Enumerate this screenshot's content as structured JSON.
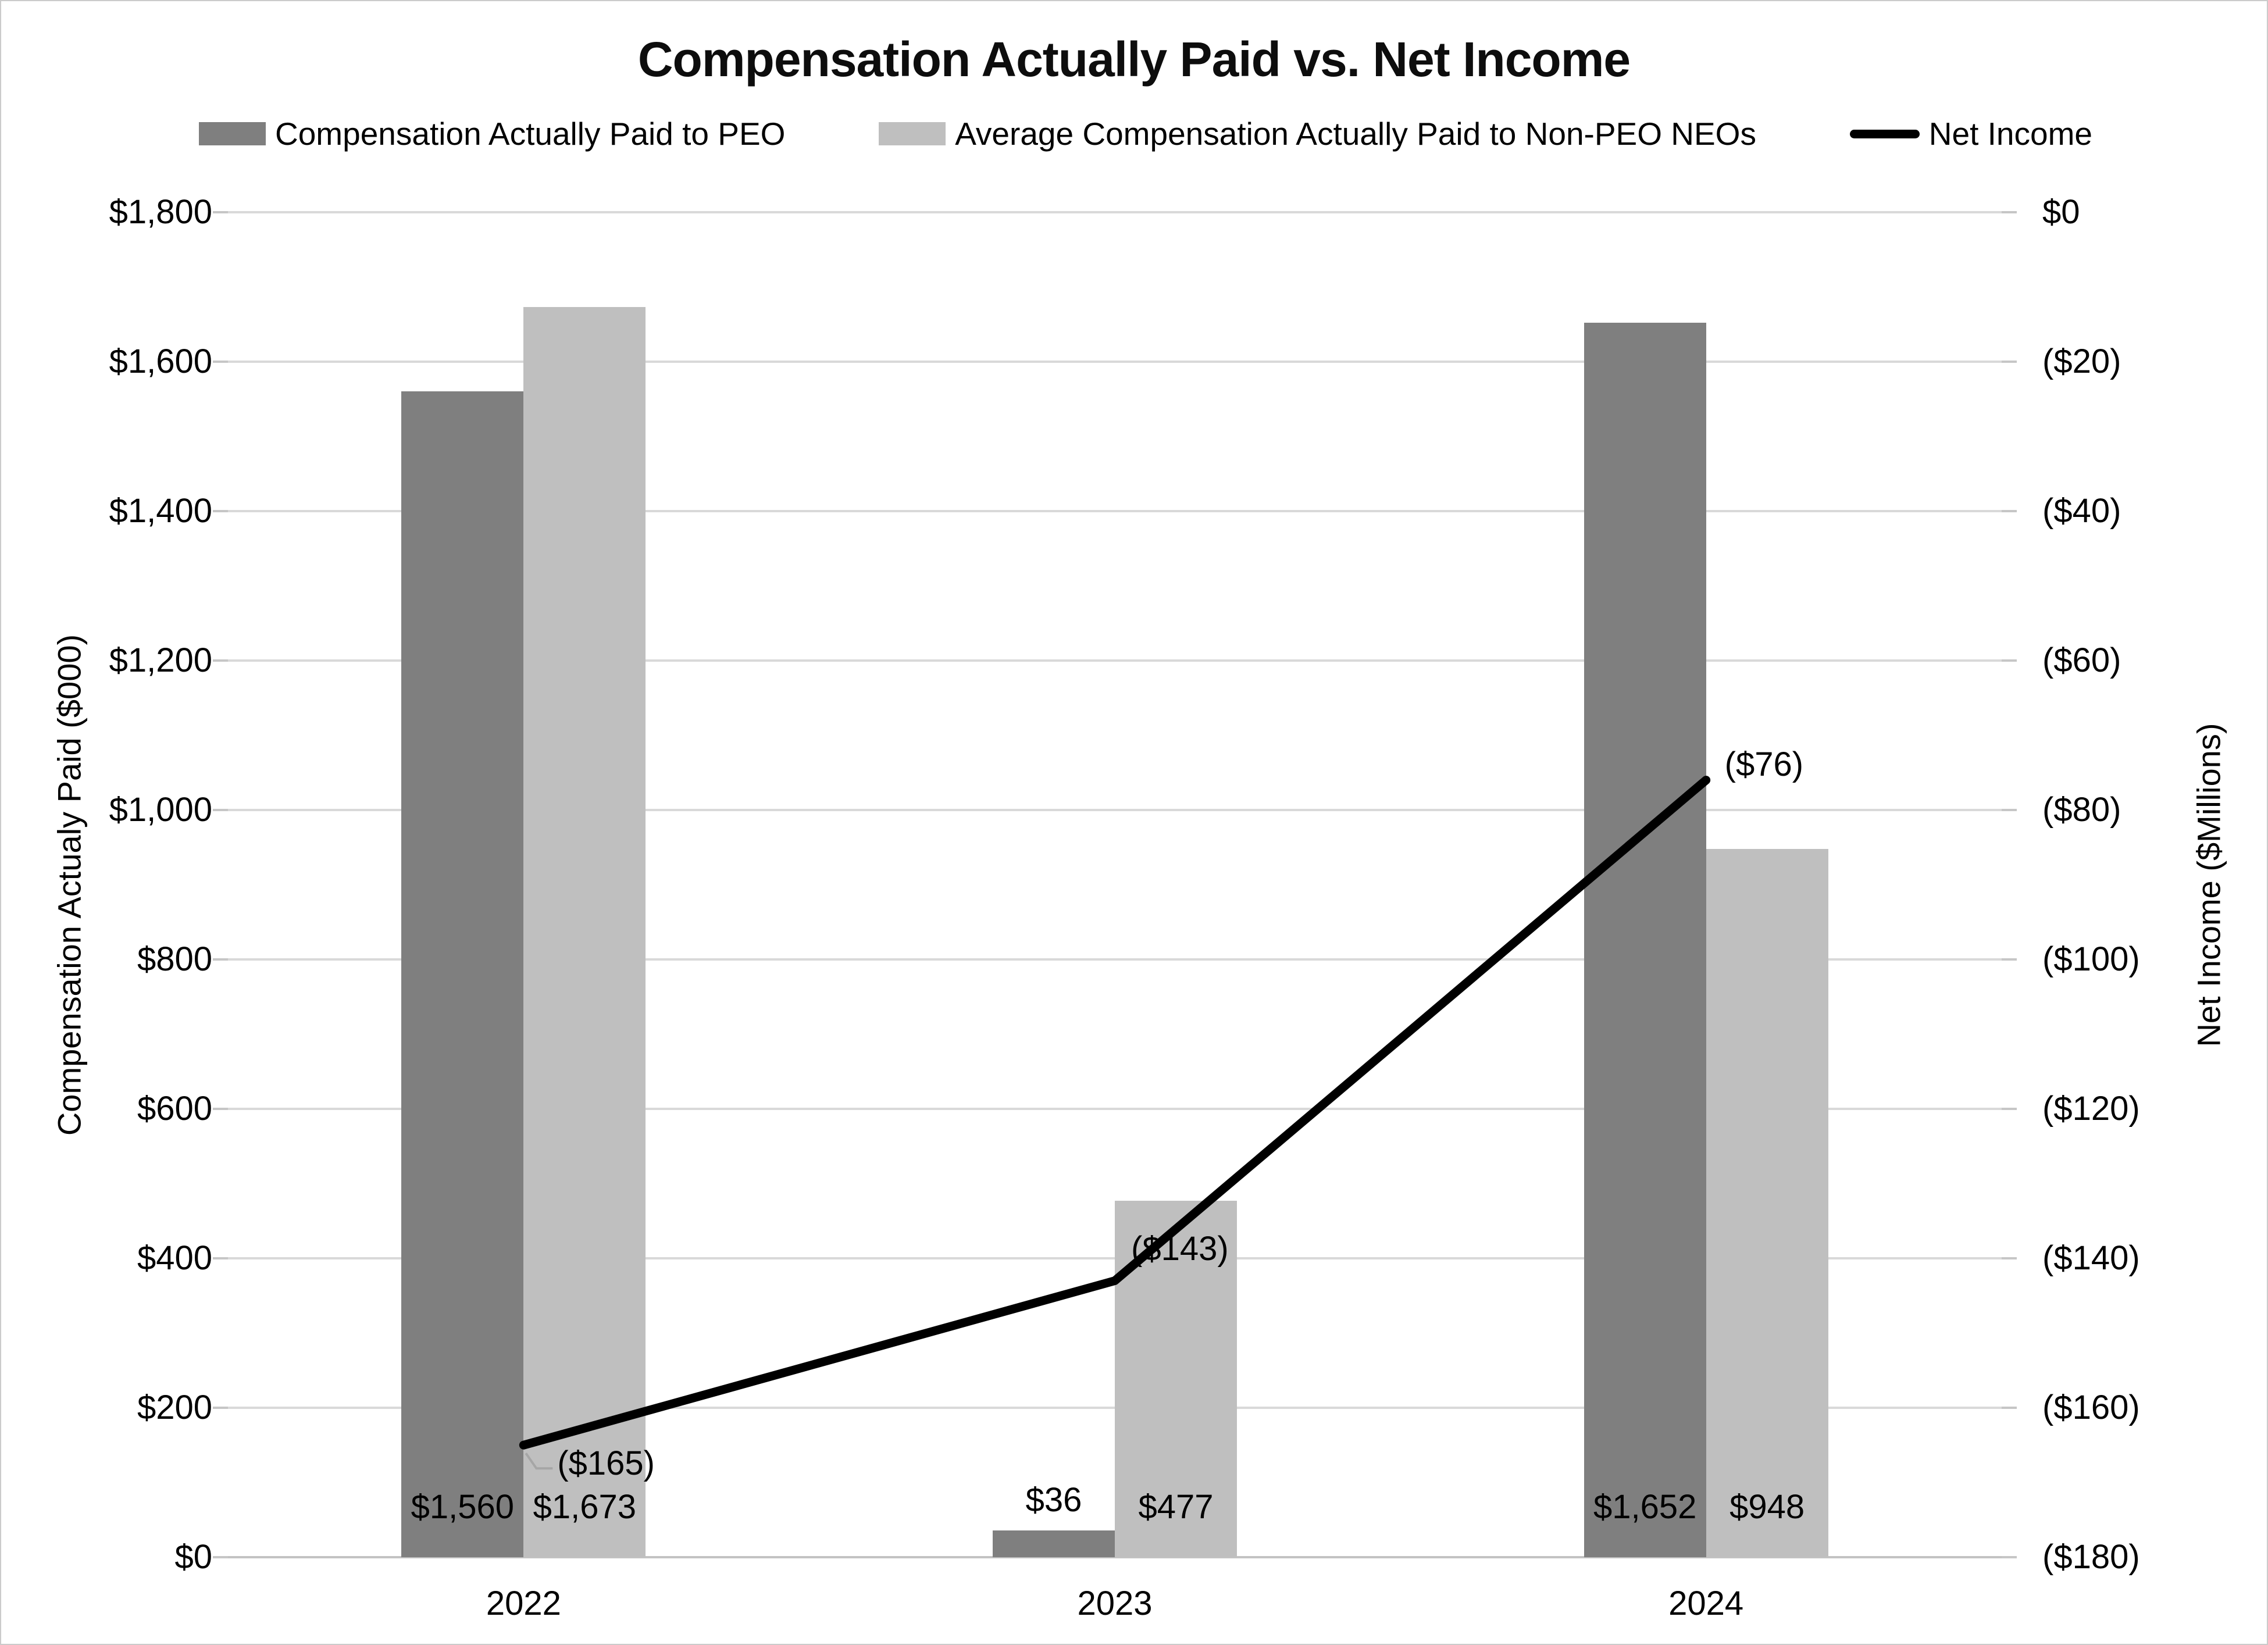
{
  "chart_data": {
    "type": "combo-bar-line",
    "title": "Compensation Actually Paid vs. Net Income",
    "categories": [
      "2022",
      "2023",
      "2024"
    ],
    "series": [
      {
        "name": "Compensation Actually Paid to PEO",
        "type": "bar",
        "axis": "left",
        "color": "#7f7f7f",
        "values": [
          1560,
          36,
          1652
        ],
        "data_labels": [
          "$1,560",
          "$36",
          "$1,652"
        ]
      },
      {
        "name": "Average Compensation Actually Paid to Non-PEO NEOs",
        "type": "bar",
        "axis": "left",
        "color": "#bfbfbf",
        "values": [
          1673,
          477,
          948
        ],
        "data_labels": [
          "$1,673",
          "$477",
          "$948"
        ]
      },
      {
        "name": "Net Income",
        "type": "line",
        "axis": "right",
        "color": "#000000",
        "values": [
          -165,
          -143,
          -76
        ],
        "data_labels": [
          "($165)",
          "($143)",
          "($76)"
        ]
      }
    ],
    "left_axis": {
      "title": "Compensation Actualy Paid ($000)",
      "min": 0,
      "max": 1800,
      "step": 200,
      "tick_labels": [
        "$1,800",
        "$1,600",
        "$1,400",
        "$1,200",
        "$1,000",
        "$800",
        "$600",
        "$400",
        "$200",
        "$0"
      ]
    },
    "right_axis": {
      "title": "Net Income ($Millions)",
      "min": -180,
      "max": 0,
      "step": 20,
      "tick_labels": [
        "$0",
        "($20)",
        "($40)",
        "($60)",
        "($80)",
        "($100)",
        "($120)",
        "($140)",
        "($160)",
        "($180)"
      ]
    },
    "grid": true,
    "legend_position": "top"
  },
  "colors": {
    "gridline": "#d9d9d9",
    "axis_line": "#c3c3c3",
    "tick": "#c6c6c6",
    "leader_line": "#a6a6a6",
    "border": "#cbcbcb",
    "text": "#000000"
  }
}
